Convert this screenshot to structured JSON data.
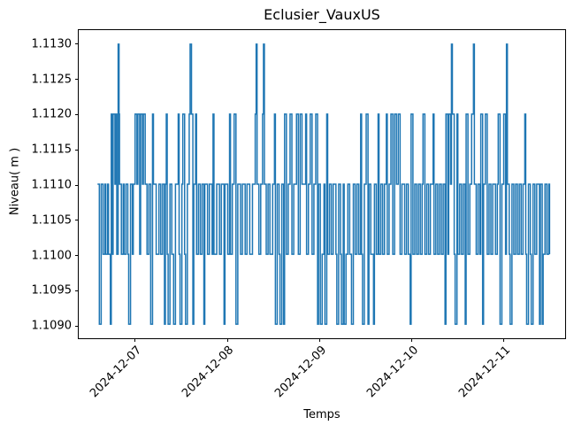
{
  "figure": {
    "title": "Eclusier_VauxUS",
    "x_axis_label": "Temps",
    "y_axis_label": "Niveau( m )",
    "background_color": "#ffffff",
    "line_color": "#1f77b4"
  },
  "chart_data": {
    "type": "line",
    "title": "Eclusier_VauxUS",
    "xlabel": "Temps",
    "ylabel": "Niveau( m )",
    "grid": false,
    "legend": null,
    "x_unit": "days_since_2024-12-06_00:00",
    "xlim": [
      0.385,
      5.69
    ],
    "ylim": [
      1.1088,
      1.1132
    ],
    "x_ticks": [
      {
        "value": 1,
        "label": "2024-12-07"
      },
      {
        "value": 2,
        "label": "2024-12-08"
      },
      {
        "value": 3,
        "label": "2024-12-09"
      },
      {
        "value": 4,
        "label": "2024-12-10"
      },
      {
        "value": 5,
        "label": "2024-12-11"
      }
    ],
    "y_ticks": [
      {
        "value": 1.109,
        "label": "1.1090"
      },
      {
        "value": 1.1095,
        "label": "1.1095"
      },
      {
        "value": 1.11,
        "label": "1.1100"
      },
      {
        "value": 1.1105,
        "label": "1.1105"
      },
      {
        "value": 1.111,
        "label": "1.1110"
      },
      {
        "value": 1.1115,
        "label": "1.1115"
      },
      {
        "value": 1.112,
        "label": "1.1120"
      },
      {
        "value": 1.1125,
        "label": "1.1125"
      },
      {
        "value": 1.113,
        "label": "1.1130"
      }
    ],
    "series": [
      {
        "name": "Niveau",
        "color": "#1f77b4",
        "line_width": 1.5,
        "step": "after",
        "levels": [
          1.109,
          1.11,
          1.111,
          1.112,
          1.113
        ],
        "points": [
          [
            0.59,
            1.111
          ],
          [
            0.61,
            1.109
          ],
          [
            0.63,
            1.111
          ],
          [
            0.65,
            1.11
          ],
          [
            0.67,
            1.111
          ],
          [
            0.68,
            1.11
          ],
          [
            0.7,
            1.111
          ],
          [
            0.71,
            1.11
          ],
          [
            0.73,
            1.109
          ],
          [
            0.74,
            1.112
          ],
          [
            0.75,
            1.11
          ],
          [
            0.76,
            1.112
          ],
          [
            0.78,
            1.111
          ],
          [
            0.79,
            1.112
          ],
          [
            0.8,
            1.11
          ],
          [
            0.815,
            1.113
          ],
          [
            0.825,
            1.112
          ],
          [
            0.83,
            1.111
          ],
          [
            0.85,
            1.11
          ],
          [
            0.87,
            1.111
          ],
          [
            0.88,
            1.11
          ],
          [
            0.9,
            1.111
          ],
          [
            0.92,
            1.11
          ],
          [
            0.93,
            1.109
          ],
          [
            0.95,
            1.111
          ],
          [
            0.97,
            1.11
          ],
          [
            0.98,
            1.111
          ],
          [
            1.0,
            1.112
          ],
          [
            1.02,
            1.111
          ],
          [
            1.03,
            1.112
          ],
          [
            1.05,
            1.11
          ],
          [
            1.06,
            1.112
          ],
          [
            1.08,
            1.111
          ],
          [
            1.09,
            1.112
          ],
          [
            1.11,
            1.111
          ],
          [
            1.13,
            1.11
          ],
          [
            1.15,
            1.111
          ],
          [
            1.17,
            1.109
          ],
          [
            1.19,
            1.112
          ],
          [
            1.2,
            1.111
          ],
          [
            1.23,
            1.11
          ],
          [
            1.26,
            1.111
          ],
          [
            1.28,
            1.11
          ],
          [
            1.3,
            1.111
          ],
          [
            1.32,
            1.109
          ],
          [
            1.33,
            1.111
          ],
          [
            1.34,
            1.112
          ],
          [
            1.35,
            1.11
          ],
          [
            1.36,
            1.109
          ],
          [
            1.38,
            1.111
          ],
          [
            1.4,
            1.11
          ],
          [
            1.42,
            1.109
          ],
          [
            1.44,
            1.111
          ],
          [
            1.47,
            1.112
          ],
          [
            1.48,
            1.11
          ],
          [
            1.49,
            1.109
          ],
          [
            1.51,
            1.111
          ],
          [
            1.52,
            1.112
          ],
          [
            1.54,
            1.11
          ],
          [
            1.55,
            1.109
          ],
          [
            1.57,
            1.111
          ],
          [
            1.59,
            1.112
          ],
          [
            1.6,
            1.113
          ],
          [
            1.615,
            1.112
          ],
          [
            1.63,
            1.109
          ],
          [
            1.64,
            1.111
          ],
          [
            1.66,
            1.112
          ],
          [
            1.67,
            1.11
          ],
          [
            1.69,
            1.111
          ],
          [
            1.71,
            1.11
          ],
          [
            1.73,
            1.111
          ],
          [
            1.75,
            1.109
          ],
          [
            1.76,
            1.111
          ],
          [
            1.79,
            1.11
          ],
          [
            1.81,
            1.111
          ],
          [
            1.84,
            1.11
          ],
          [
            1.85,
            1.112
          ],
          [
            1.86,
            1.11
          ],
          [
            1.89,
            1.111
          ],
          [
            1.92,
            1.11
          ],
          [
            1.94,
            1.111
          ],
          [
            1.97,
            1.109
          ],
          [
            1.98,
            1.111
          ],
          [
            2.01,
            1.11
          ],
          [
            2.03,
            1.112
          ],
          [
            2.04,
            1.11
          ],
          [
            2.06,
            1.111
          ],
          [
            2.08,
            1.112
          ],
          [
            2.1,
            1.109
          ],
          [
            2.12,
            1.111
          ],
          [
            2.15,
            1.11
          ],
          [
            2.17,
            1.111
          ],
          [
            2.2,
            1.11
          ],
          [
            2.22,
            1.111
          ],
          [
            2.25,
            1.11
          ],
          [
            2.28,
            1.111
          ],
          [
            2.31,
            1.112
          ],
          [
            2.32,
            1.113
          ],
          [
            2.33,
            1.111
          ],
          [
            2.35,
            1.11
          ],
          [
            2.37,
            1.111
          ],
          [
            2.39,
            1.112
          ],
          [
            2.4,
            1.113
          ],
          [
            2.41,
            1.111
          ],
          [
            2.43,
            1.11
          ],
          [
            2.45,
            1.111
          ],
          [
            2.47,
            1.11
          ],
          [
            2.5,
            1.111
          ],
          [
            2.52,
            1.112
          ],
          [
            2.53,
            1.109
          ],
          [
            2.55,
            1.111
          ],
          [
            2.57,
            1.11
          ],
          [
            2.58,
            1.109
          ],
          [
            2.6,
            1.111
          ],
          [
            2.62,
            1.109
          ],
          [
            2.63,
            1.112
          ],
          [
            2.65,
            1.11
          ],
          [
            2.67,
            1.111
          ],
          [
            2.69,
            1.112
          ],
          [
            2.71,
            1.11
          ],
          [
            2.73,
            1.111
          ],
          [
            2.76,
            1.112
          ],
          [
            2.78,
            1.11
          ],
          [
            2.8,
            1.112
          ],
          [
            2.82,
            1.111
          ],
          [
            2.86,
            1.112
          ],
          [
            2.87,
            1.11
          ],
          [
            2.89,
            1.111
          ],
          [
            2.91,
            1.112
          ],
          [
            2.93,
            1.11
          ],
          [
            2.95,
            1.111
          ],
          [
            2.97,
            1.112
          ],
          [
            2.99,
            1.109
          ],
          [
            3.0,
            1.111
          ],
          [
            3.02,
            1.109
          ],
          [
            3.04,
            1.11
          ],
          [
            3.06,
            1.111
          ],
          [
            3.07,
            1.109
          ],
          [
            3.09,
            1.112
          ],
          [
            3.1,
            1.11
          ],
          [
            3.12,
            1.111
          ],
          [
            3.14,
            1.11
          ],
          [
            3.16,
            1.111
          ],
          [
            3.19,
            1.11
          ],
          [
            3.2,
            1.109
          ],
          [
            3.22,
            1.111
          ],
          [
            3.24,
            1.11
          ],
          [
            3.25,
            1.109
          ],
          [
            3.27,
            1.111
          ],
          [
            3.28,
            1.109
          ],
          [
            3.3,
            1.11
          ],
          [
            3.32,
            1.111
          ],
          [
            3.34,
            1.11
          ],
          [
            3.36,
            1.109
          ],
          [
            3.38,
            1.111
          ],
          [
            3.4,
            1.11
          ],
          [
            3.42,
            1.111
          ],
          [
            3.44,
            1.11
          ],
          [
            3.46,
            1.112
          ],
          [
            3.47,
            1.11
          ],
          [
            3.48,
            1.109
          ],
          [
            3.5,
            1.111
          ],
          [
            3.52,
            1.112
          ],
          [
            3.54,
            1.109
          ],
          [
            3.55,
            1.111
          ],
          [
            3.57,
            1.11
          ],
          [
            3.6,
            1.109
          ],
          [
            3.61,
            1.111
          ],
          [
            3.63,
            1.11
          ],
          [
            3.65,
            1.112
          ],
          [
            3.66,
            1.11
          ],
          [
            3.68,
            1.111
          ],
          [
            3.7,
            1.11
          ],
          [
            3.72,
            1.111
          ],
          [
            3.74,
            1.112
          ],
          [
            3.75,
            1.11
          ],
          [
            3.77,
            1.111
          ],
          [
            3.79,
            1.112
          ],
          [
            3.81,
            1.11
          ],
          [
            3.83,
            1.112
          ],
          [
            3.85,
            1.111
          ],
          [
            3.87,
            1.112
          ],
          [
            3.89,
            1.11
          ],
          [
            3.91,
            1.111
          ],
          [
            3.94,
            1.11
          ],
          [
            3.96,
            1.111
          ],
          [
            3.98,
            1.11
          ],
          [
            4.0,
            1.109
          ],
          [
            4.01,
            1.112
          ],
          [
            4.03,
            1.11
          ],
          [
            4.05,
            1.111
          ],
          [
            4.07,
            1.11
          ],
          [
            4.09,
            1.111
          ],
          [
            4.11,
            1.11
          ],
          [
            4.13,
            1.111
          ],
          [
            4.14,
            1.112
          ],
          [
            4.16,
            1.11
          ],
          [
            4.18,
            1.111
          ],
          [
            4.2,
            1.11
          ],
          [
            4.22,
            1.111
          ],
          [
            4.25,
            1.112
          ],
          [
            4.26,
            1.11
          ],
          [
            4.28,
            1.111
          ],
          [
            4.3,
            1.11
          ],
          [
            4.32,
            1.111
          ],
          [
            4.34,
            1.11
          ],
          [
            4.36,
            1.111
          ],
          [
            4.38,
            1.109
          ],
          [
            4.39,
            1.112
          ],
          [
            4.41,
            1.11
          ],
          [
            4.42,
            1.112
          ],
          [
            4.44,
            1.111
          ],
          [
            4.45,
            1.113
          ],
          [
            4.46,
            1.112
          ],
          [
            4.48,
            1.11
          ],
          [
            4.49,
            1.109
          ],
          [
            4.51,
            1.112
          ],
          [
            4.52,
            1.11
          ],
          [
            4.54,
            1.111
          ],
          [
            4.56,
            1.11
          ],
          [
            4.58,
            1.111
          ],
          [
            4.6,
            1.109
          ],
          [
            4.61,
            1.112
          ],
          [
            4.63,
            1.11
          ],
          [
            4.65,
            1.111
          ],
          [
            4.67,
            1.112
          ],
          [
            4.69,
            1.113
          ],
          [
            4.7,
            1.111
          ],
          [
            4.72,
            1.11
          ],
          [
            4.74,
            1.111
          ],
          [
            4.76,
            1.11
          ],
          [
            4.77,
            1.112
          ],
          [
            4.79,
            1.109
          ],
          [
            4.8,
            1.111
          ],
          [
            4.82,
            1.112
          ],
          [
            4.84,
            1.11
          ],
          [
            4.86,
            1.111
          ],
          [
            4.88,
            1.11
          ],
          [
            4.9,
            1.111
          ],
          [
            4.93,
            1.11
          ],
          [
            4.95,
            1.111
          ],
          [
            4.96,
            1.112
          ],
          [
            4.98,
            1.109
          ],
          [
            5.0,
            1.111
          ],
          [
            5.02,
            1.112
          ],
          [
            5.04,
            1.11
          ],
          [
            5.05,
            1.113
          ],
          [
            5.06,
            1.111
          ],
          [
            5.08,
            1.11
          ],
          [
            5.09,
            1.109
          ],
          [
            5.11,
            1.111
          ],
          [
            5.13,
            1.11
          ],
          [
            5.15,
            1.111
          ],
          [
            5.17,
            1.11
          ],
          [
            5.19,
            1.111
          ],
          [
            5.21,
            1.11
          ],
          [
            5.23,
            1.111
          ],
          [
            5.25,
            1.112
          ],
          [
            5.26,
            1.11
          ],
          [
            5.27,
            1.109
          ],
          [
            5.29,
            1.111
          ],
          [
            5.31,
            1.11
          ],
          [
            5.32,
            1.109
          ],
          [
            5.34,
            1.111
          ],
          [
            5.36,
            1.11
          ],
          [
            5.38,
            1.111
          ],
          [
            5.41,
            1.109
          ],
          [
            5.42,
            1.111
          ],
          [
            5.44,
            1.109
          ],
          [
            5.45,
            1.11
          ],
          [
            5.47,
            1.111
          ],
          [
            5.49,
            1.11
          ],
          [
            5.51,
            1.111
          ],
          [
            5.52,
            1.11
          ]
        ]
      }
    ]
  }
}
